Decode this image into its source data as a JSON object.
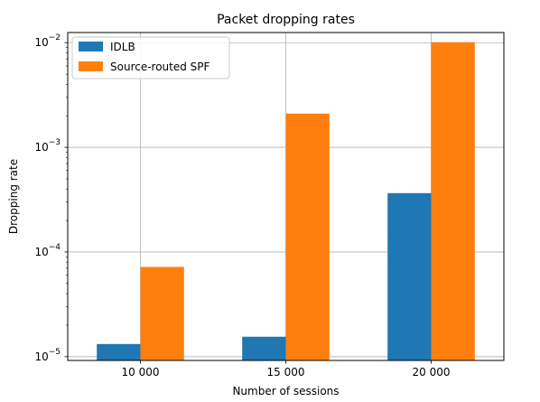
{
  "chart_data": {
    "type": "bar",
    "title": "Packet dropping rates",
    "xlabel": "Number of sessions",
    "ylabel": "Dropping rate",
    "yscale": "log",
    "ylim": [
      9.2e-06,
      0.0125
    ],
    "categories": [
      "10 000",
      "15 000",
      "20 000"
    ],
    "series": [
      {
        "name": "IDLB",
        "color": "#1f77b4",
        "values": [
          1.32e-05,
          1.55e-05,
          0.000365
        ]
      },
      {
        "name": "Source-routed SPF",
        "color": "#ff7f0e",
        "values": [
          7.2e-05,
          0.0021,
          0.0101
        ]
      }
    ],
    "yticks": [
      {
        "exponent": "-5",
        "value": 1e-05
      },
      {
        "exponent": "-4",
        "value": 0.0001
      },
      {
        "exponent": "-3",
        "value": 0.001
      },
      {
        "exponent": "-2",
        "value": 0.01
      }
    ],
    "tick_base": "10",
    "grid": true,
    "legend_position": "upper-left"
  }
}
